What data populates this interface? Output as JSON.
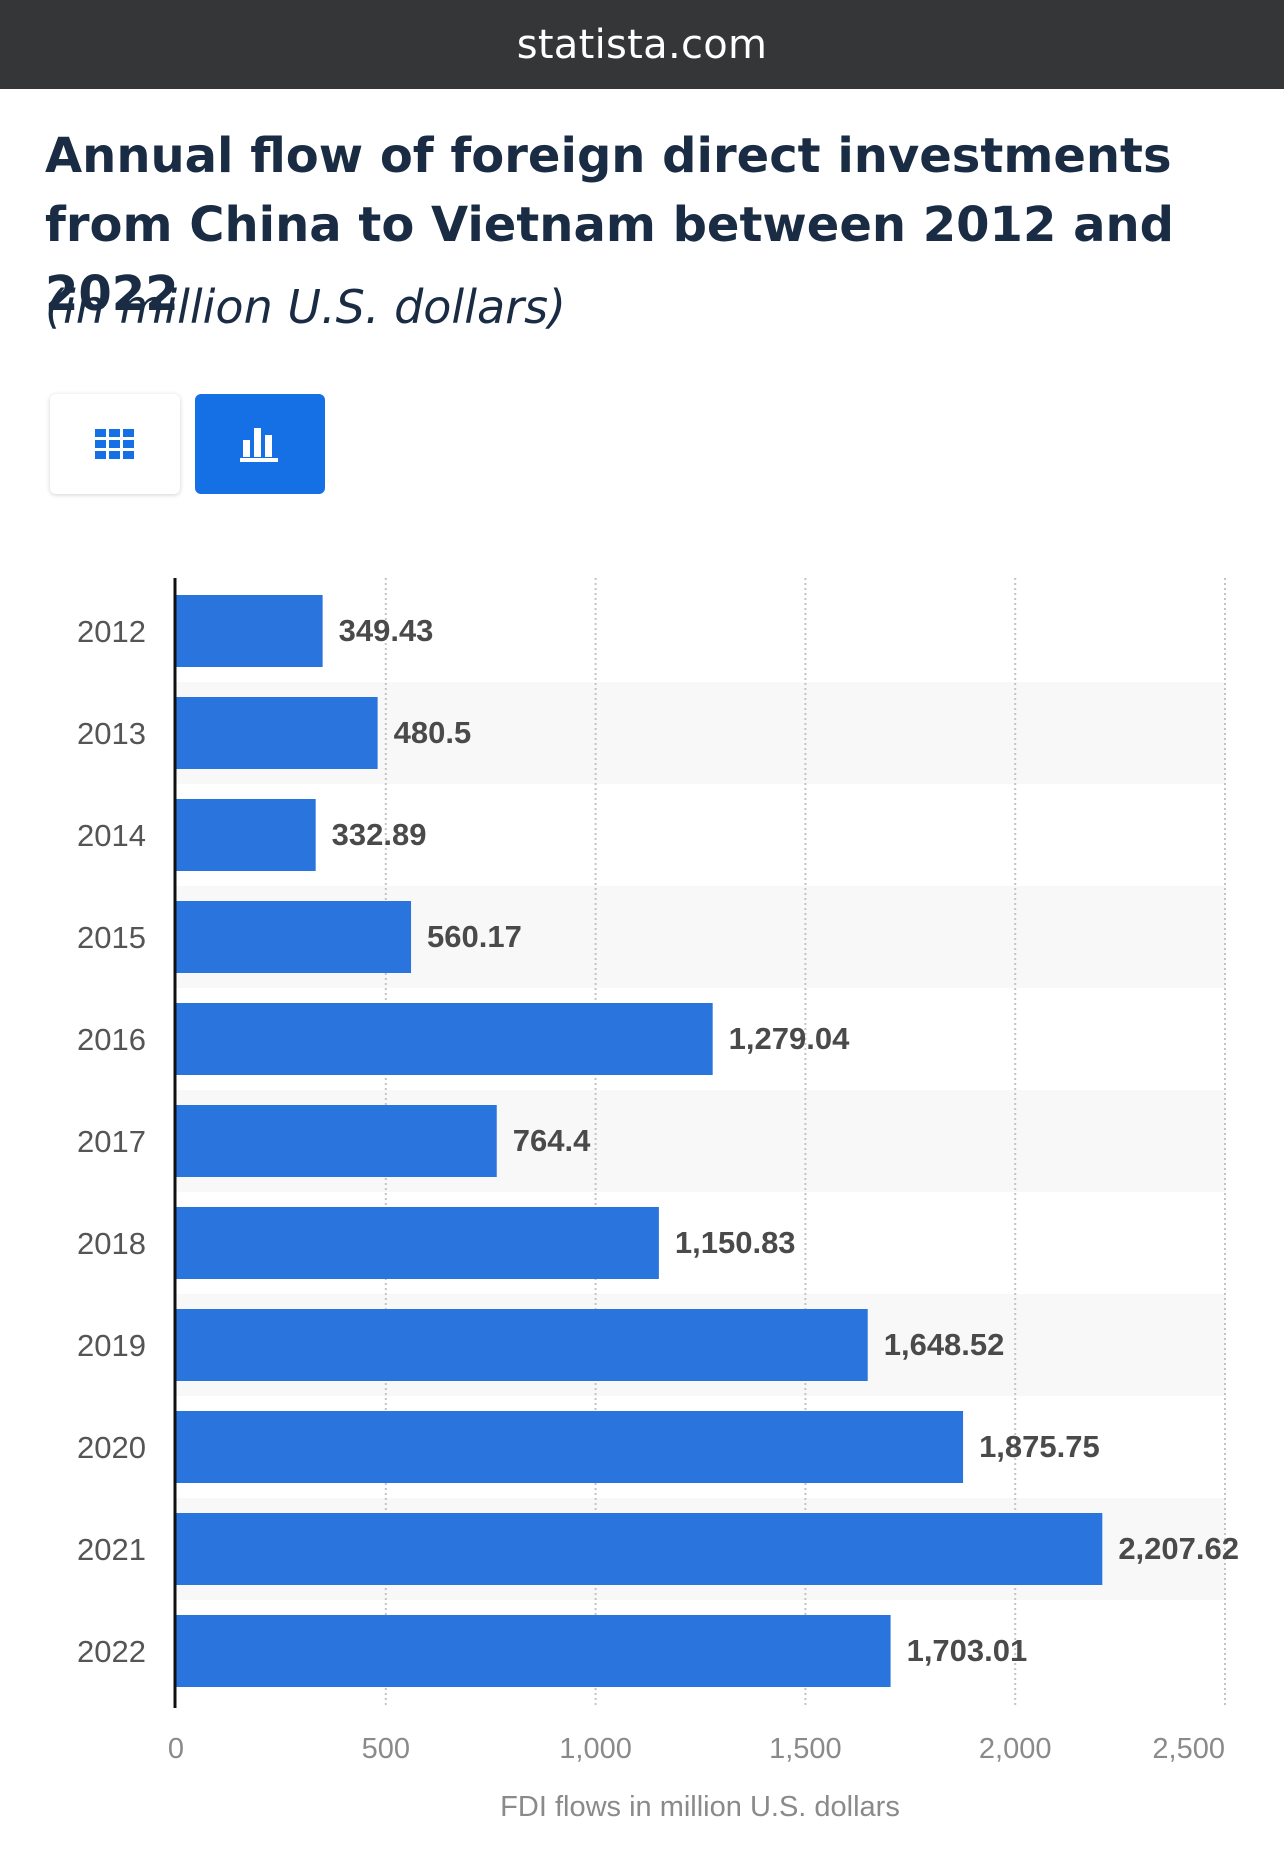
{
  "site": {
    "domain": "statista.com"
  },
  "header": {
    "title": "Annual flow of foreign direct investments from China to Vietnam between 2012 and 2022",
    "subtitle": "(in million U.S. dollars)"
  },
  "view_toggle": {
    "table_icon": "table-grid-icon",
    "chart_icon": "bar-chart-icon",
    "active": "chart"
  },
  "colors": {
    "bar": "#2a74de",
    "accent": "#1570e6",
    "topbar": "#343638",
    "title": "#1a2b44"
  },
  "chart_data": {
    "type": "bar",
    "orientation": "horizontal",
    "categories": [
      "2012",
      "2013",
      "2014",
      "2015",
      "2016",
      "2017",
      "2018",
      "2019",
      "2020",
      "2021",
      "2022"
    ],
    "values": [
      349.43,
      480.5,
      332.89,
      560.17,
      1279.04,
      764.4,
      1150.83,
      1648.52,
      1875.75,
      2207.62,
      1703.01
    ],
    "value_labels": [
      "349.43",
      "480.5",
      "332.89",
      "560.17",
      "1,279.04",
      "764.4",
      "1,150.83",
      "1,648.52",
      "1,875.75",
      "2,207.62",
      "1,703.01"
    ],
    "x_ticks": [
      0,
      500,
      1000,
      1500,
      2000,
      2500
    ],
    "x_tick_labels": [
      "0",
      "500",
      "1,000",
      "1,500",
      "2,000",
      "2,500"
    ],
    "xlim": [
      0,
      2500
    ],
    "xlabel": "FDI flows in million U.S. dollars",
    "ylabel": "",
    "grid": "vertical-dotted"
  }
}
